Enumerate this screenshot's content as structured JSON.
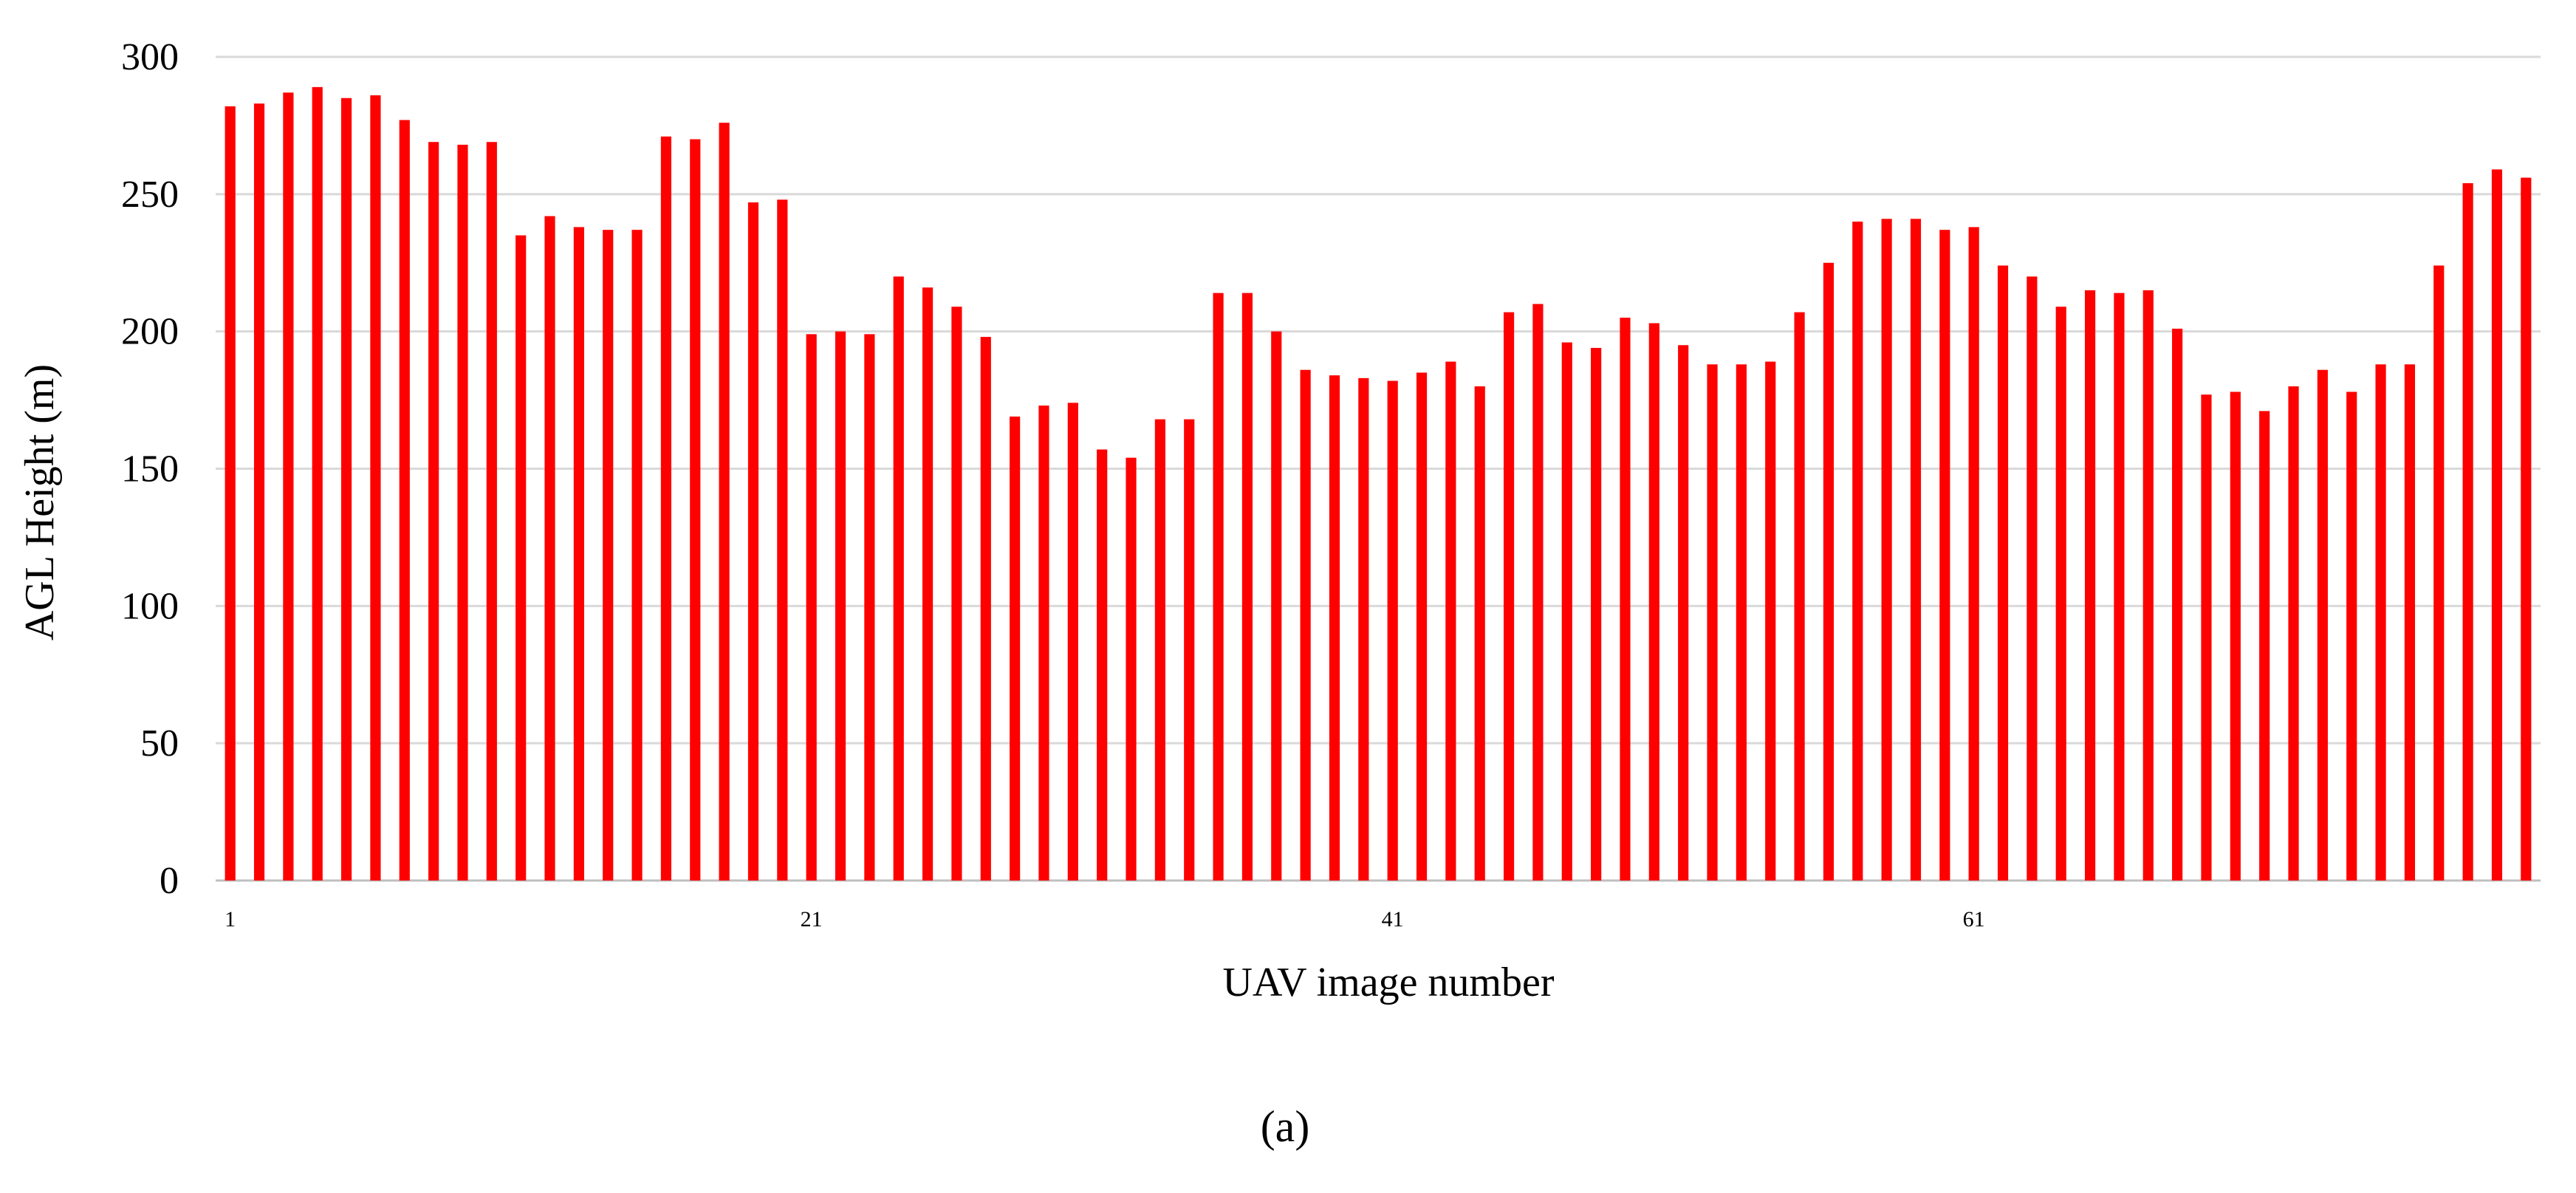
{
  "chart_data": {
    "type": "bar",
    "title": "",
    "xlabel": "UAV image number",
    "ylabel": "AGL Height (m)",
    "panel_label": "(a)",
    "ylim": [
      0,
      300
    ],
    "yticks": [
      0,
      50,
      100,
      150,
      200,
      250,
      300
    ],
    "xticks": [
      1,
      21,
      41,
      61
    ],
    "grid": true,
    "legend": "none",
    "bar_color": "#ff0000",
    "categories": [
      1,
      2,
      3,
      4,
      5,
      6,
      7,
      8,
      9,
      10,
      11,
      12,
      13,
      14,
      15,
      16,
      17,
      18,
      19,
      20,
      21,
      22,
      23,
      24,
      25,
      26,
      27,
      28,
      29,
      30,
      31,
      32,
      33,
      34,
      35,
      36,
      37,
      38,
      39,
      40,
      41,
      42,
      43,
      44,
      45,
      46,
      47,
      48,
      49,
      50,
      51,
      52,
      53,
      54,
      55,
      56,
      57,
      58,
      59,
      60,
      61,
      62,
      63,
      64,
      65,
      66,
      67,
      68,
      69,
      70,
      71,
      72,
      73,
      74,
      75,
      76,
      77,
      78,
      79,
      80
    ],
    "values": [
      282,
      283,
      287,
      289,
      285,
      286,
      277,
      269,
      268,
      269,
      235,
      242,
      238,
      237,
      237,
      271,
      270,
      276,
      247,
      248,
      199,
      200,
      199,
      220,
      216,
      209,
      198,
      169,
      173,
      174,
      157,
      154,
      168,
      168,
      214,
      214,
      200,
      186,
      184,
      183,
      182,
      185,
      189,
      180,
      207,
      210,
      196,
      194,
      205,
      203,
      195,
      188,
      188,
      189,
      207,
      225,
      240,
      241,
      241,
      237,
      238,
      224,
      220,
      209,
      215,
      214,
      215,
      201,
      177,
      178,
      171,
      180,
      186,
      178,
      188,
      188,
      224,
      254,
      259,
      256
    ]
  }
}
